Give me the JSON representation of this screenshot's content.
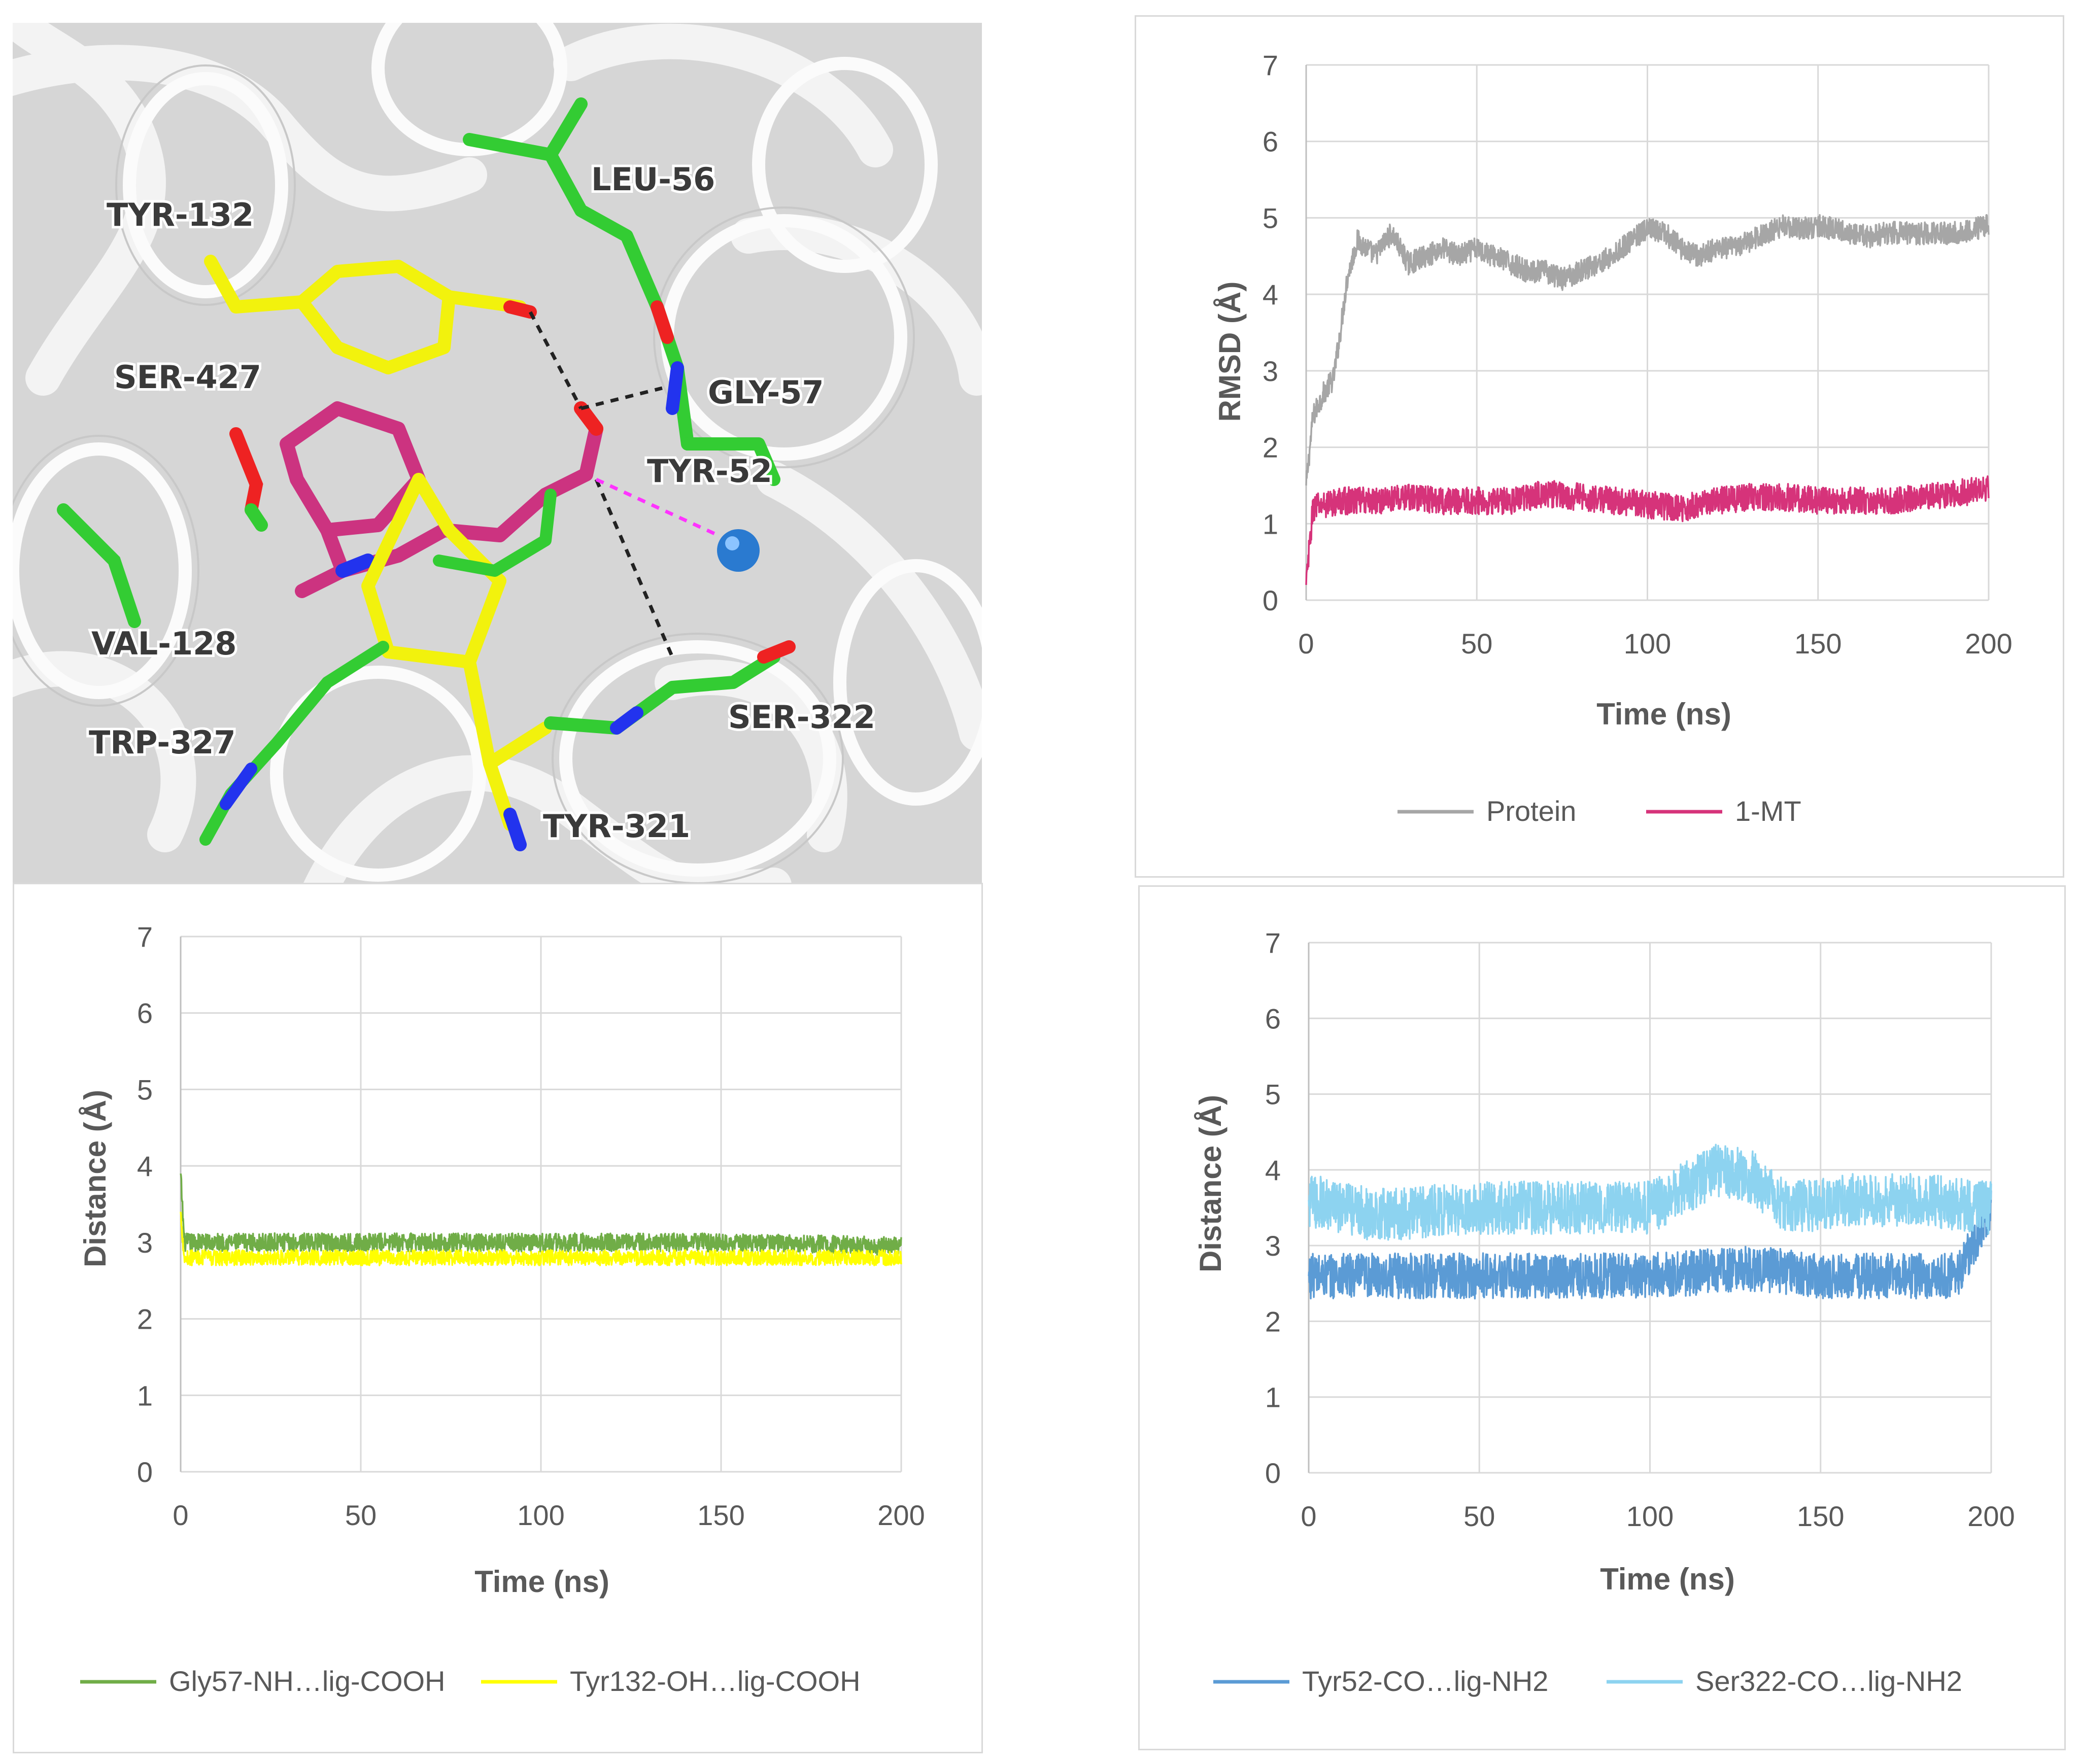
{
  "structure_panel": {
    "residue_labels": [
      "TYR-132",
      "LEU-56",
      "SER-427",
      "GLY-57",
      "TYR-52",
      "VAL-128",
      "TRP-327",
      "SER-322",
      "TYR-321"
    ],
    "colors": {
      "background": "#dcdcdc",
      "ribbon": "#f4f4f4",
      "carbon_green": "#33cc33",
      "carbon_yellow": "#f2f20d",
      "ligand_magenta": "#cc3380",
      "nitrogen": "#2233ee",
      "oxygen": "#ee2222",
      "ion": "#2a7ad0",
      "hbond": "#222222",
      "metal_contact": "#ff33ff"
    }
  },
  "chart_data": [
    {
      "id": "rmsd",
      "type": "line",
      "xlabel": "Time (ns)",
      "ylabel": "RMSD (Å)",
      "xlim": [
        0,
        200
      ],
      "ylim": [
        0,
        7
      ],
      "xticks": [
        "0",
        "50",
        "100",
        "150",
        "200"
      ],
      "yticks": [
        "0",
        "1",
        "2",
        "3",
        "4",
        "5",
        "6",
        "7"
      ],
      "grid": true,
      "legend": "bottom",
      "series": [
        {
          "name": "Protein",
          "color": "#a6a6a6",
          "noise": 0.15,
          "x": [
            0,
            2,
            5,
            8,
            10,
            12,
            15,
            18,
            20,
            25,
            30,
            35,
            40,
            45,
            50,
            55,
            60,
            65,
            70,
            75,
            80,
            85,
            90,
            95,
            100,
            105,
            110,
            115,
            120,
            125,
            130,
            135,
            140,
            145,
            150,
            155,
            160,
            165,
            170,
            175,
            180,
            185,
            190,
            195,
            200
          ],
          "y": [
            1.5,
            2.4,
            2.7,
            2.9,
            3.5,
            4.2,
            4.7,
            4.6,
            4.5,
            4.8,
            4.4,
            4.5,
            4.6,
            4.5,
            4.6,
            4.5,
            4.4,
            4.3,
            4.3,
            4.2,
            4.3,
            4.4,
            4.5,
            4.7,
            4.85,
            4.8,
            4.6,
            4.5,
            4.6,
            4.6,
            4.7,
            4.8,
            4.9,
            4.85,
            4.9,
            4.85,
            4.8,
            4.75,
            4.8,
            4.8,
            4.8,
            4.8,
            4.8,
            4.85,
            4.9
          ]
        },
        {
          "name": "1-MT",
          "color": "#d6337a",
          "noise": 0.18,
          "x": [
            0,
            2,
            5,
            10,
            20,
            30,
            40,
            50,
            60,
            70,
            80,
            90,
            100,
            110,
            120,
            130,
            140,
            150,
            160,
            170,
            180,
            190,
            200
          ],
          "y": [
            0.2,
            1.2,
            1.25,
            1.3,
            1.3,
            1.35,
            1.3,
            1.3,
            1.3,
            1.4,
            1.35,
            1.3,
            1.25,
            1.2,
            1.3,
            1.35,
            1.35,
            1.3,
            1.3,
            1.3,
            1.35,
            1.4,
            1.45
          ]
        }
      ]
    },
    {
      "id": "dist1",
      "type": "line",
      "xlabel": "Time (ns)",
      "ylabel": "Distance (Å)",
      "xlim": [
        0,
        200
      ],
      "ylim": [
        0,
        7
      ],
      "xticks": [
        "0",
        "50",
        "100",
        "150",
        "200"
      ],
      "yticks": [
        "0",
        "1",
        "2",
        "3",
        "4",
        "5",
        "6",
        "7"
      ],
      "grid": true,
      "legend": "bottom",
      "series": [
        {
          "name": "Gly57-NH…lig-COOH",
          "color": "#70ad47",
          "noise": 0.12,
          "x": [
            0,
            1,
            3,
            10,
            50,
            100,
            150,
            200
          ],
          "y": [
            3.9,
            3.0,
            3.0,
            3.0,
            3.0,
            3.0,
            3.0,
            2.95
          ]
        },
        {
          "name": "Tyr132-OH…lig-COOH",
          "color": "#ffff00",
          "noise": 0.1,
          "x": [
            0,
            1,
            3,
            10,
            50,
            100,
            150,
            200
          ],
          "y": [
            3.4,
            2.8,
            2.8,
            2.8,
            2.8,
            2.8,
            2.8,
            2.8
          ]
        }
      ]
    },
    {
      "id": "dist2",
      "type": "line",
      "xlabel": "Time (ns)",
      "ylabel": "Distance (Å)",
      "xlim": [
        0,
        200
      ],
      "ylim": [
        0,
        7
      ],
      "xticks": [
        "0",
        "50",
        "100",
        "150",
        "200"
      ],
      "yticks": [
        "0",
        "1",
        "2",
        "3",
        "4",
        "5",
        "6",
        "7"
      ],
      "grid": true,
      "legend": "bottom",
      "series": [
        {
          "name": "Tyr52-CO…lig-NH2",
          "color": "#5b9bd5",
          "noise": 0.3,
          "x": [
            0,
            20,
            50,
            100,
            130,
            150,
            190,
            200
          ],
          "y": [
            2.6,
            2.6,
            2.6,
            2.6,
            2.7,
            2.6,
            2.6,
            3.5
          ]
        },
        {
          "name": "Ser322-CO…lig-NH2",
          "color": "#8dd3f0",
          "noise": 0.35,
          "x": [
            0,
            20,
            50,
            100,
            120,
            130,
            140,
            160,
            180,
            200
          ],
          "y": [
            3.6,
            3.4,
            3.5,
            3.5,
            4.0,
            3.9,
            3.5,
            3.6,
            3.6,
            3.5
          ]
        }
      ]
    }
  ]
}
